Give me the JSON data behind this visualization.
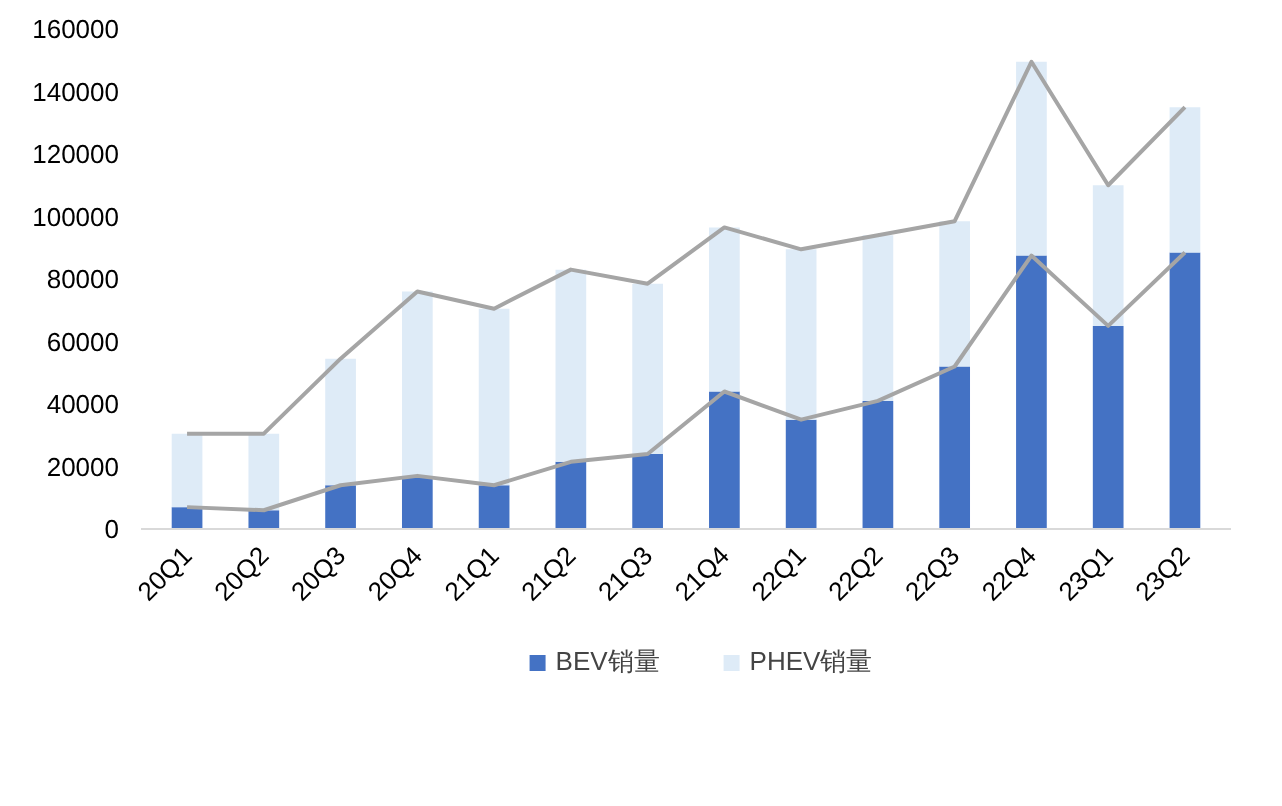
{
  "chart_data": {
    "type": "bar",
    "stacked": true,
    "legend": "bottom",
    "grid": false,
    "categories": [
      "20Q1",
      "20Q2",
      "20Q3",
      "20Q4",
      "21Q1",
      "21Q2",
      "21Q3",
      "21Q4",
      "22Q1",
      "22Q2",
      "22Q3",
      "22Q4",
      "23Q1",
      "23Q2"
    ],
    "ylim": [
      0,
      160000
    ],
    "yticks": [
      0,
      20000,
      40000,
      60000,
      80000,
      100000,
      120000,
      140000,
      160000
    ],
    "series": [
      {
        "type": "line",
        "color": "#a5a5a5",
        "values": [
          7000,
          6000,
          14000,
          17000,
          14000,
          21500,
          24000,
          44000,
          35000,
          41000,
          52000,
          87500,
          65000,
          88500
        ]
      },
      {
        "type": "line",
        "color": "#a5a5a5",
        "values": [
          30500,
          30500,
          54500,
          76000,
          70500,
          83000,
          78500,
          96500,
          89500,
          94000,
          98500,
          149500,
          110000,
          135000
        ]
      },
      {
        "name": "BEV销量",
        "color": "#4472c4",
        "values": [
          7000,
          6000,
          14000,
          17000,
          14000,
          21500,
          24000,
          44000,
          35000,
          41000,
          52000,
          87500,
          65000,
          88500
        ]
      },
      {
        "name": "PHEV销量",
        "color": "#deebf7",
        "values": [
          23500,
          24500,
          40500,
          59000,
          56500,
          61500,
          54500,
          52500,
          54500,
          53000,
          46500,
          62000,
          45000,
          46500
        ]
      }
    ]
  }
}
